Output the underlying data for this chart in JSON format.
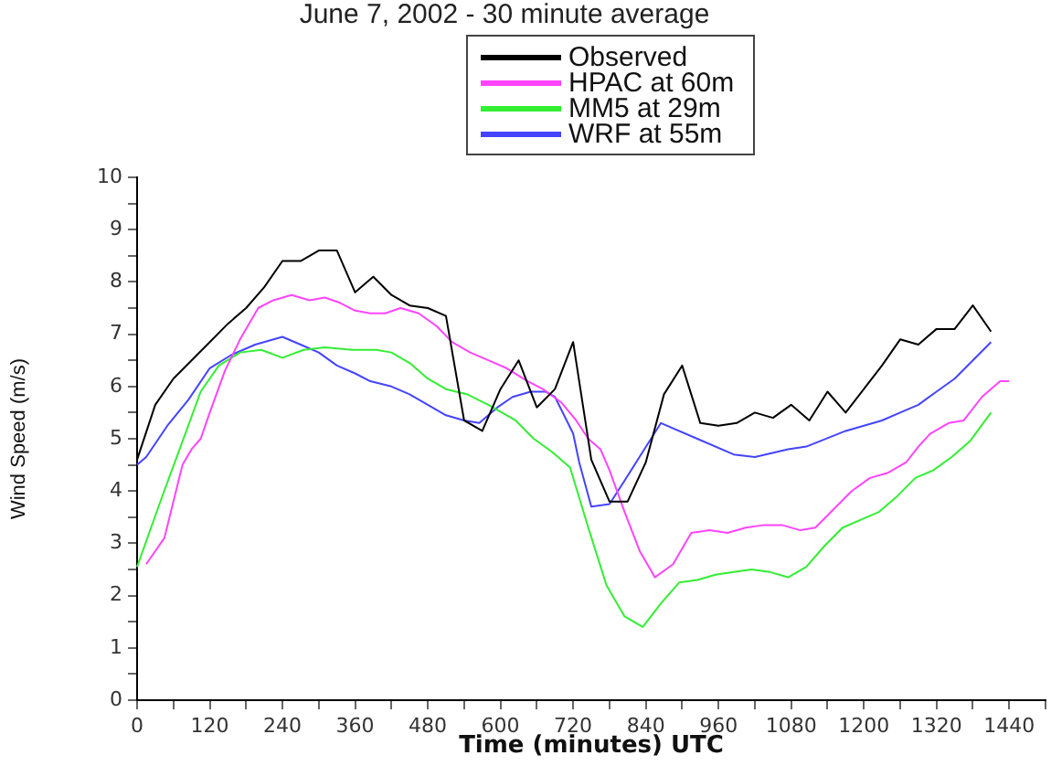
{
  "chart_data": {
    "type": "line",
    "title": "June 7, 2002 - 30 minute average",
    "xlabel": "Time (minutes) UTC",
    "ylabel": "Wind Speed (m/s)",
    "xlim": [
      0,
      1500
    ],
    "xticks": [
      0,
      {
        "value": 60,
        "label": null
      },
      120,
      {
        "value": 180,
        "label": null
      },
      240,
      {
        "value": 300,
        "label": null
      },
      360,
      {
        "value": 420,
        "label": null
      },
      480,
      {
        "value": 540,
        "label": null
      },
      600,
      {
        "value": 660,
        "label": null
      },
      720,
      {
        "value": 780,
        "label": null
      },
      840,
      {
        "value": 900,
        "label": null
      },
      960,
      {
        "value": 1020,
        "label": null
      },
      1080,
      {
        "value": 1140,
        "label": null
      },
      1200,
      {
        "value": 1260,
        "label": null
      },
      1320,
      {
        "value": 1380,
        "label": null
      },
      1440,
      {
        "value": 1500,
        "label": null
      }
    ],
    "ylim": [
      0,
      10
    ],
    "yticks": [
      0,
      {
        "value": 0.5,
        "label": null
      },
      1,
      {
        "value": 1.5,
        "label": null
      },
      2,
      {
        "value": 2.5,
        "label": null
      },
      3,
      {
        "value": 3.5,
        "label": null
      },
      4,
      {
        "value": 4.5,
        "label": null
      },
      5,
      {
        "value": 5.5,
        "label": null
      },
      6,
      {
        "value": 6.5,
        "label": null
      },
      7,
      {
        "value": 7.5,
        "label": null
      },
      8,
      {
        "value": 8.5,
        "label": null
      },
      9,
      {
        "value": 9.5,
        "label": null
      },
      10
    ],
    "grid": false,
    "legend": "top",
    "marker": "none",
    "line_style": "solid",
    "series": [
      {
        "name": "Observed",
        "color": "#000000",
        "x": [
          0,
          30,
          60,
          90,
          120,
          150,
          180,
          210,
          240,
          270,
          300,
          330,
          360,
          390,
          420,
          450,
          480,
          510,
          540,
          570,
          600,
          630,
          660,
          690,
          720,
          750,
          780,
          810,
          840,
          870,
          900,
          930,
          960,
          990,
          1020,
          1050,
          1080,
          1110,
          1140,
          1170,
          1200,
          1230,
          1260,
          1290,
          1320,
          1350,
          1380,
          1410
        ],
        "values": [
          4.6,
          5.65,
          6.15,
          6.5,
          6.85,
          7.2,
          7.5,
          7.9,
          8.4,
          8.4,
          8.6,
          8.6,
          7.8,
          8.1,
          7.75,
          7.55,
          7.5,
          7.35,
          5.35,
          5.15,
          5.95,
          6.5,
          5.6,
          5.95,
          6.85,
          4.6,
          3.8,
          3.8,
          4.55,
          5.85,
          6.4,
          5.3,
          5.25,
          5.3,
          5.5,
          5.4,
          5.65,
          5.35,
          5.9,
          5.5,
          5.95,
          6.4,
          6.9,
          6.8,
          7.1,
          7.1,
          7.55,
          7.05
        ]
      },
      {
        "name": "HPAC at 60m",
        "color": "#ff44ff",
        "x": [
          15,
          45,
          75,
          90,
          105,
          120,
          145,
          170,
          200,
          225,
          255,
          285,
          310,
          335,
          360,
          385,
          410,
          435,
          465,
          495,
          520,
          550,
          580,
          610,
          645,
          670,
          700,
          725,
          745,
          765,
          780,
          805,
          830,
          855,
          885,
          915,
          945,
          975,
          1005,
          1035,
          1065,
          1095,
          1120,
          1150,
          1180,
          1210,
          1240,
          1270,
          1290,
          1310,
          1340,
          1365,
          1395,
          1425,
          1440
        ],
        "values": [
          2.6,
          3.1,
          4.5,
          4.8,
          5.0,
          5.5,
          6.3,
          6.9,
          7.5,
          7.65,
          7.75,
          7.65,
          7.7,
          7.6,
          7.45,
          7.4,
          7.4,
          7.5,
          7.4,
          7.15,
          6.85,
          6.65,
          6.5,
          6.35,
          6.1,
          5.95,
          5.7,
          5.35,
          5.0,
          4.8,
          4.4,
          3.6,
          2.85,
          2.35,
          2.6,
          3.2,
          3.25,
          3.2,
          3.3,
          3.35,
          3.35,
          3.25,
          3.3,
          3.65,
          4.0,
          4.25,
          4.35,
          4.55,
          4.85,
          5.1,
          5.3,
          5.35,
          5.8,
          6.1,
          6.1
        ]
      },
      {
        "name": "MM5 at 29m",
        "color": "#33ee33",
        "x": [
          0,
          40,
          75,
          105,
          135,
          170,
          205,
          240,
          275,
          310,
          355,
          395,
          420,
          450,
          480,
          510,
          545,
          580,
          625,
          655,
          685,
          715,
          745,
          775,
          805,
          835,
          865,
          895,
          925,
          955,
          985,
          1015,
          1045,
          1075,
          1105,
          1135,
          1165,
          1195,
          1225,
          1255,
          1285,
          1315,
          1345,
          1375,
          1410
        ],
        "values": [
          2.55,
          3.85,
          4.95,
          5.9,
          6.4,
          6.65,
          6.7,
          6.55,
          6.7,
          6.75,
          6.7,
          6.7,
          6.65,
          6.45,
          6.15,
          5.95,
          5.85,
          5.65,
          5.35,
          5.0,
          4.75,
          4.45,
          3.3,
          2.2,
          1.6,
          1.4,
          1.85,
          2.25,
          2.3,
          2.4,
          2.45,
          2.5,
          2.45,
          2.35,
          2.55,
          2.95,
          3.3,
          3.45,
          3.6,
          3.9,
          4.25,
          4.4,
          4.65,
          4.95,
          5.5
        ]
      },
      {
        "name": "WRF at 55m",
        "color": "#4444ff",
        "x": [
          0,
          15,
          50,
          85,
          120,
          155,
          195,
          240,
          270,
          300,
          330,
          360,
          385,
          420,
          450,
          480,
          510,
          540,
          565,
          595,
          620,
          650,
          675,
          690,
          720,
          730,
          750,
          780,
          805,
          835,
          865,
          925,
          985,
          1020,
          1075,
          1105,
          1170,
          1230,
          1260,
          1290,
          1320,
          1350,
          1380,
          1410
        ],
        "values": [
          4.5,
          4.65,
          5.25,
          5.75,
          6.35,
          6.6,
          6.8,
          6.95,
          6.8,
          6.65,
          6.4,
          6.25,
          6.1,
          6.0,
          5.85,
          5.65,
          5.45,
          5.35,
          5.3,
          5.6,
          5.8,
          5.9,
          5.9,
          5.8,
          5.1,
          4.55,
          3.7,
          3.75,
          4.2,
          4.75,
          5.3,
          5.0,
          4.7,
          4.65,
          4.8,
          4.85,
          5.15,
          5.35,
          5.5,
          5.65,
          5.9,
          6.15,
          6.5,
          6.85
        ]
      }
    ]
  }
}
